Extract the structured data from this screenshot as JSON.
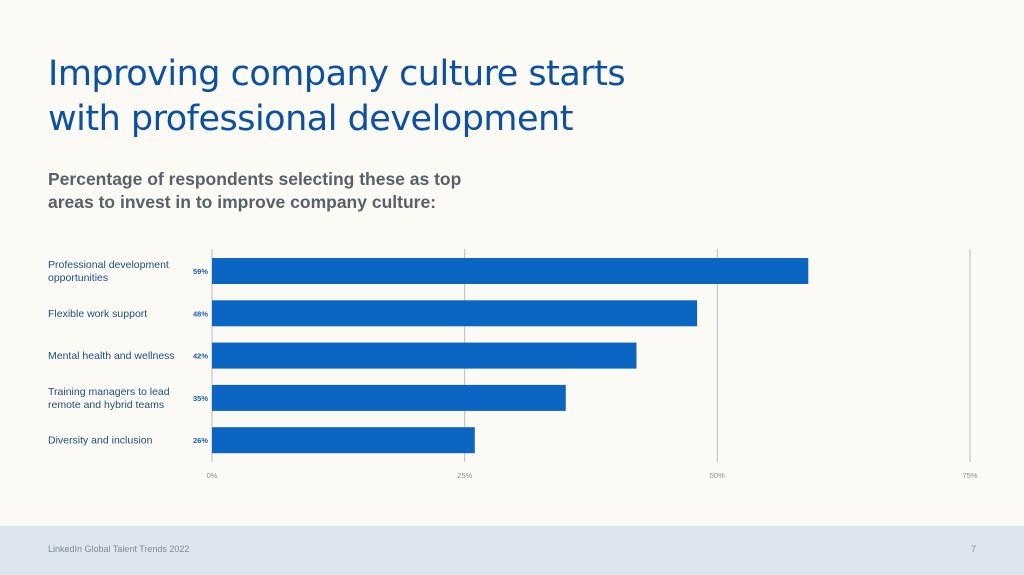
{
  "page": {
    "title": "Improving company culture starts with professional development",
    "subtitle": "Percentage of respondents selecting these as top areas to invest in to improve company culture:"
  },
  "chart_data": {
    "type": "bar",
    "orientation": "horizontal",
    "categories": [
      "Professional development opportunities",
      "Flexible work support",
      "Mental health and wellness",
      "Training managers to lead remote and hybrid teams",
      "Diversity and inclusion"
    ],
    "category_lines": [
      [
        "Professional development",
        "opportunities"
      ],
      [
        "Flexible work support"
      ],
      [
        "Mental health and wellness"
      ],
      [
        "Training managers to lead",
        "remote and hybrid teams"
      ],
      [
        "Diversity and inclusion"
      ]
    ],
    "values": [
      59,
      48,
      42,
      35,
      26
    ],
    "value_labels": [
      "59%",
      "48%",
      "42%",
      "35%",
      "26%"
    ],
    "xlim": [
      0,
      75
    ],
    "xticks": [
      0,
      25,
      50,
      75
    ],
    "xtick_labels": [
      "0%",
      "25%",
      "50%",
      "75%"
    ],
    "grid": true,
    "bar_color": "#0a66c2"
  },
  "footer": {
    "source": "LinkedIn Global Talent Trends 2022",
    "page_number": "7"
  }
}
